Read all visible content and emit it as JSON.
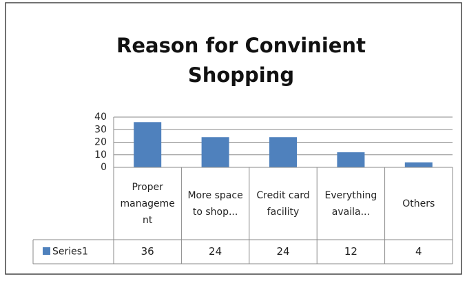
{
  "chart_data": {
    "type": "bar",
    "title": "Reason for Convinient Shopping",
    "categories": [
      "Proper management",
      "More space to shop...",
      "Credit card facility",
      "Everything availa...",
      "Others"
    ],
    "series": [
      {
        "name": "Series1",
        "color": "#4f81bd",
        "values": [
          36,
          24,
          24,
          12,
          4
        ]
      }
    ],
    "ylim": [
      0,
      40
    ],
    "yticks": [
      0,
      10,
      20,
      30,
      40
    ],
    "grid": true
  }
}
